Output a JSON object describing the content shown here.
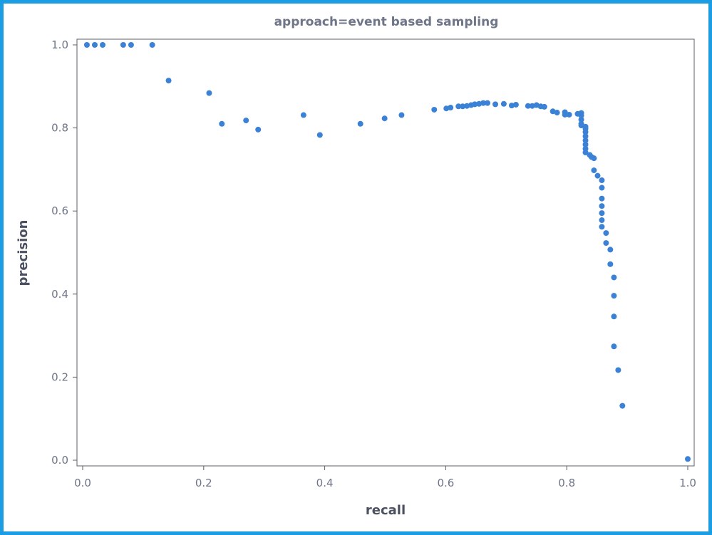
{
  "chart_data": {
    "type": "scatter",
    "title": "approach=event based sampling",
    "xlabel": "recall",
    "ylabel": "precision",
    "xlim": [
      0,
      1
    ],
    "ylim": [
      0,
      1
    ],
    "xticks": [
      0.0,
      0.2,
      0.4,
      0.6,
      0.8,
      1.0
    ],
    "yticks": [
      0.0,
      0.2,
      0.4,
      0.6,
      0.8,
      1.0
    ],
    "xtick_labels": [
      "0.0",
      "0.2",
      "0.4",
      "0.6",
      "0.8",
      "1.0"
    ],
    "ytick_labels": [
      "0.0",
      "0.2",
      "0.4",
      "0.6",
      "0.8",
      "1.0"
    ],
    "grid": false,
    "point_color": "#3b82d6",
    "points": [
      [
        0.007,
        1.0
      ],
      [
        0.02,
        1.0
      ],
      [
        0.033,
        1.0
      ],
      [
        0.067,
        1.0
      ],
      [
        0.08,
        1.0
      ],
      [
        0.115,
        1.0
      ],
      [
        0.142,
        0.914
      ],
      [
        0.209,
        0.884
      ],
      [
        0.23,
        0.81
      ],
      [
        0.27,
        0.818
      ],
      [
        0.29,
        0.796
      ],
      [
        0.365,
        0.831
      ],
      [
        0.392,
        0.783
      ],
      [
        0.459,
        0.81
      ],
      [
        0.499,
        0.823
      ],
      [
        0.527,
        0.831
      ],
      [
        0.581,
        0.844
      ],
      [
        0.601,
        0.847
      ],
      [
        0.608,
        0.849
      ],
      [
        0.621,
        0.852
      ],
      [
        0.628,
        0.852
      ],
      [
        0.635,
        0.853
      ],
      [
        0.642,
        0.855
      ],
      [
        0.648,
        0.857
      ],
      [
        0.655,
        0.858
      ],
      [
        0.662,
        0.86
      ],
      [
        0.669,
        0.86
      ],
      [
        0.682,
        0.857
      ],
      [
        0.696,
        0.858
      ],
      [
        0.709,
        0.854
      ],
      [
        0.716,
        0.856
      ],
      [
        0.736,
        0.853
      ],
      [
        0.743,
        0.853
      ],
      [
        0.75,
        0.855
      ],
      [
        0.757,
        0.852
      ],
      [
        0.763,
        0.851
      ],
      [
        0.777,
        0.84
      ],
      [
        0.784,
        0.837
      ],
      [
        0.797,
        0.838
      ],
      [
        0.797,
        0.832
      ],
      [
        0.804,
        0.832
      ],
      [
        0.818,
        0.834
      ],
      [
        0.824,
        0.836
      ],
      [
        0.824,
        0.83
      ],
      [
        0.824,
        0.82
      ],
      [
        0.824,
        0.81
      ],
      [
        0.824,
        0.806
      ],
      [
        0.831,
        0.803
      ],
      [
        0.831,
        0.798
      ],
      [
        0.831,
        0.79
      ],
      [
        0.831,
        0.78
      ],
      [
        0.831,
        0.77
      ],
      [
        0.831,
        0.76
      ],
      [
        0.831,
        0.75
      ],
      [
        0.831,
        0.741
      ],
      [
        0.838,
        0.735
      ],
      [
        0.841,
        0.73
      ],
      [
        0.845,
        0.727
      ],
      [
        0.845,
        0.698
      ],
      [
        0.851,
        0.685
      ],
      [
        0.858,
        0.674
      ],
      [
        0.858,
        0.656
      ],
      [
        0.858,
        0.63
      ],
      [
        0.858,
        0.612
      ],
      [
        0.858,
        0.595
      ],
      [
        0.858,
        0.578
      ],
      [
        0.858,
        0.562
      ],
      [
        0.865,
        0.547
      ],
      [
        0.865,
        0.523
      ],
      [
        0.872,
        0.507
      ],
      [
        0.872,
        0.472
      ],
      [
        0.878,
        0.44
      ],
      [
        0.878,
        0.396
      ],
      [
        0.878,
        0.346
      ],
      [
        0.878,
        0.274
      ],
      [
        0.885,
        0.217
      ],
      [
        0.892,
        0.131
      ],
      [
        1.0,
        0.003
      ]
    ]
  }
}
